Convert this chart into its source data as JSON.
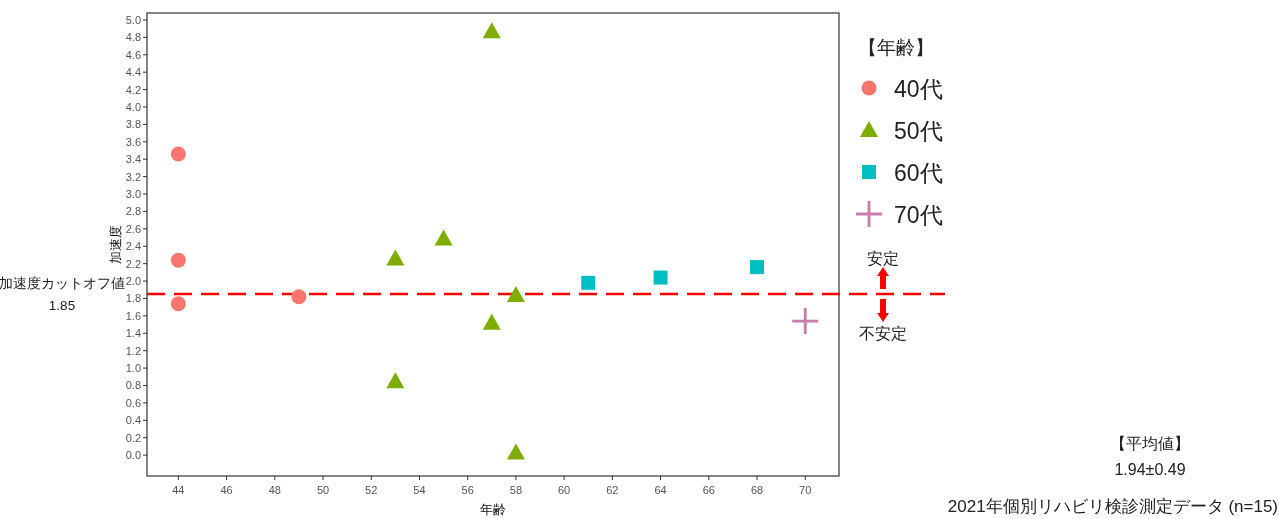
{
  "chart_data": {
    "type": "scatter",
    "xlabel": "年齢",
    "ylabel": "加速度",
    "legend_title": "【年齢】",
    "legend": "right",
    "xlim": [
      42.7,
      71.4
    ],
    "xticks": [
      44,
      46,
      48,
      50,
      52,
      54,
      56,
      58,
      60,
      62,
      64,
      66,
      68,
      70
    ],
    "ylim": [
      -0.24,
      5.08
    ],
    "yticks": [
      {
        "value": 0,
        "label": "0.0"
      },
      0.2,
      0.4,
      0.6,
      0.8,
      {
        "value": 1,
        "label": "1.0"
      },
      1.2,
      1.4,
      1.6,
      1.8,
      {
        "value": 2,
        "label": "2.0"
      },
      2.2,
      2.4,
      2.6,
      2.8,
      {
        "value": 3,
        "label": "3.0"
      },
      3.2,
      3.4,
      3.6,
      3.8,
      {
        "value": 4,
        "label": "4.0"
      },
      4.2,
      4.4,
      4.6,
      4.8,
      {
        "value": 5,
        "label": "5.0"
      }
    ],
    "grid": false,
    "series": [
      {
        "name": "40代",
        "color": "#f8766d",
        "marker": "circle",
        "x": [
          44,
          44,
          44,
          49
        ],
        "values": [
          3.46,
          2.24,
          1.74,
          1.82
        ]
      },
      {
        "name": "50代",
        "color": "#7cae00",
        "marker": "triangle",
        "x": [
          57,
          53,
          55,
          58,
          57,
          53,
          58
        ],
        "values": [
          4.87,
          2.26,
          2.49,
          1.84,
          1.52,
          0.85,
          0.03
        ]
      },
      {
        "name": "60代",
        "color": "#00bfc4",
        "marker": "square",
        "x": [
          61,
          64,
          68
        ],
        "values": [
          1.98,
          2.04,
          2.16
        ]
      },
      {
        "name": "70代",
        "color": "#c77cab",
        "marker": "cross",
        "x": [
          70
        ],
        "values": [
          1.54
        ]
      }
    ],
    "ref_lines": [
      {
        "axis": "y",
        "value": 1.85,
        "label": "加速度カットオフ値\n1.85",
        "color": "#ff0000",
        "line_style": "dashed"
      }
    ],
    "annotations": [
      "安定",
      "不安定",
      "【平均値】\n1.94±0.49",
      "2021年個別リハビリ検診測定データ (n=15)"
    ]
  }
}
